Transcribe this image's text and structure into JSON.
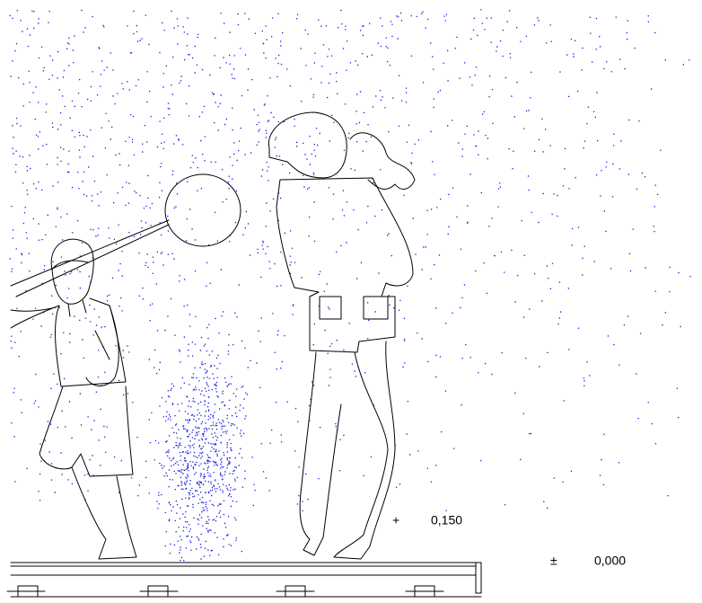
{
  "levels": [
    {
      "sign": "+",
      "value": "0,150"
    },
    {
      "sign": "±",
      "value": "0,000"
    }
  ]
}
